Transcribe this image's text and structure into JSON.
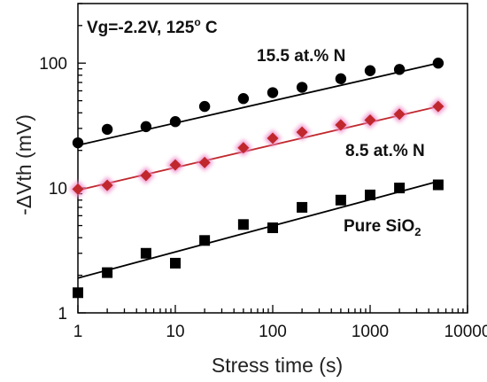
{
  "chart_data": {
    "type": "scatter",
    "xscale": "log",
    "yscale": "log",
    "xlabel": "Stress time (s)",
    "ylabel": "-ΔVth (mV)",
    "xlim": [
      1,
      10000
    ],
    "ylim": [
      1,
      300
    ],
    "xticks": [
      "1",
      "10",
      "100",
      "1000",
      "10000"
    ],
    "yticks": [
      "1",
      "10",
      "100"
    ],
    "annotation": {
      "prefix": "Vg=-2.2V, 125",
      "sup": "o",
      "suffix": " C"
    },
    "series": [
      {
        "name": "15.5 at.% N",
        "marker": "circle",
        "color": "#000000",
        "label_color": "#000000",
        "x": [
          1,
          2,
          5,
          10,
          20,
          50,
          100,
          200,
          500,
          1000,
          2000,
          5000
        ],
        "y": [
          23,
          29.5,
          31,
          34,
          45,
          52,
          58,
          64,
          75,
          87,
          89,
          100
        ],
        "fit": {
          "x": [
            1,
            5000
          ],
          "y": [
            22,
            100
          ]
        }
      },
      {
        "name": "8.5 at.% N",
        "marker": "diamond",
        "color": "#c0282d",
        "label_color": "#c0282d",
        "x": [
          1,
          2,
          5,
          10,
          20,
          50,
          100,
          200,
          500,
          1000,
          2000,
          5000
        ],
        "y": [
          9.8,
          10.5,
          12.6,
          15.3,
          16,
          21,
          25,
          28,
          32,
          35,
          39,
          45
        ],
        "fit": {
          "x": [
            1,
            5000
          ],
          "y": [
            9.6,
            45
          ]
        }
      },
      {
        "name": "Pure SiO",
        "name_sub": "2",
        "marker": "square",
        "color": "#000000",
        "label_color": "#000000",
        "x": [
          1,
          2,
          5,
          10,
          20,
          50,
          100,
          200,
          500,
          1000,
          2000,
          5000
        ],
        "y": [
          1.45,
          2.1,
          3.0,
          2.5,
          3.8,
          5.1,
          4.8,
          7.0,
          8.0,
          8.8,
          10,
          10.6
        ],
        "fit": {
          "x": [
            1,
            5000
          ],
          "y": [
            1.9,
            11.3
          ]
        }
      }
    ]
  }
}
